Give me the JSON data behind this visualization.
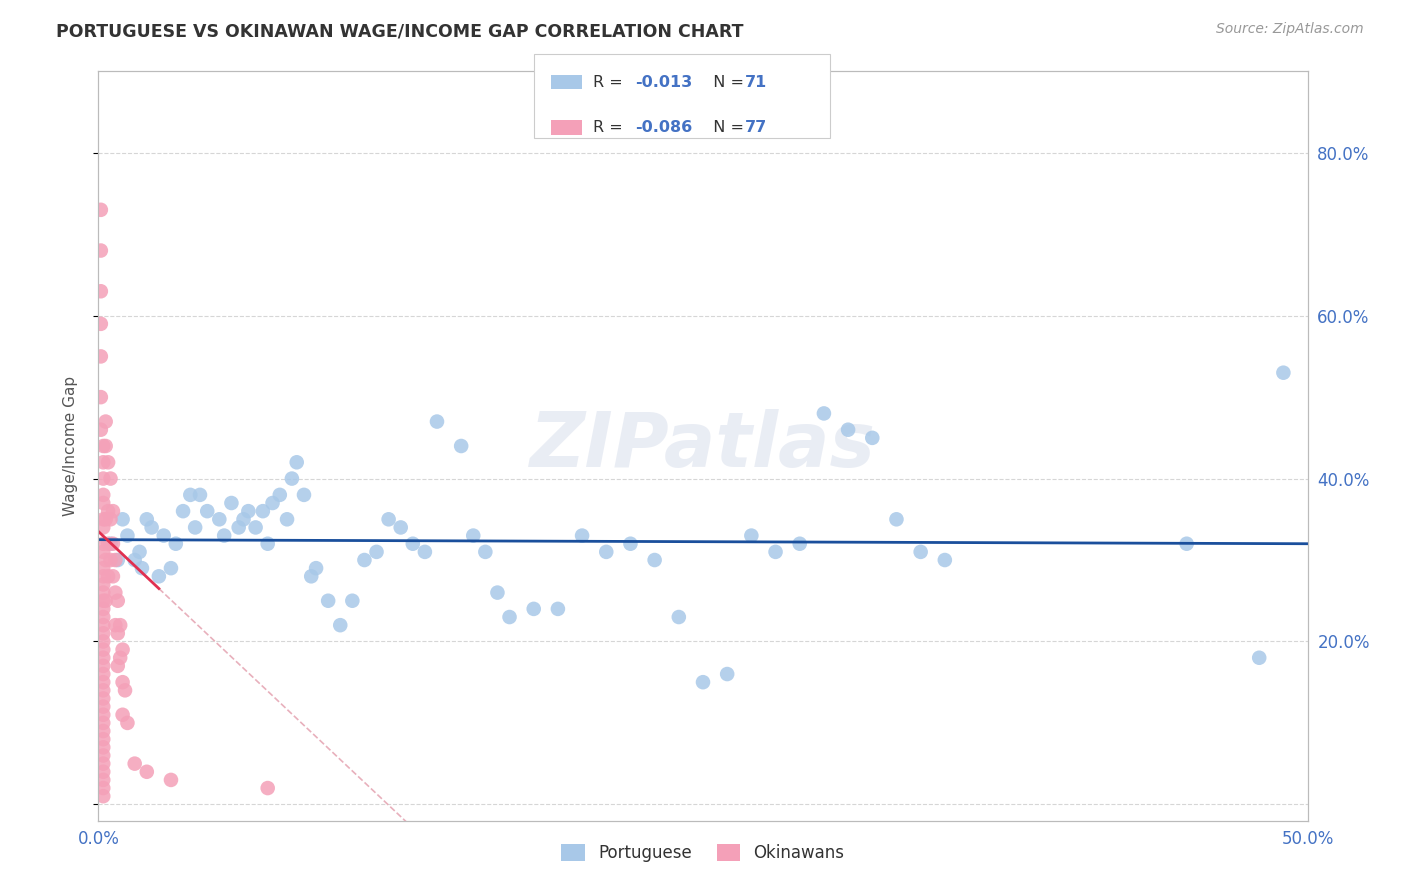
{
  "title": "PORTUGUESE VS OKINAWAN WAGE/INCOME GAP CORRELATION CHART",
  "source": "Source: ZipAtlas.com",
  "ylabel": "Wage/Income Gap",
  "legend_portuguese": "Portuguese",
  "legend_okinawans": "Okinawans",
  "portuguese_R": -0.013,
  "portuguese_N": 71,
  "okinawan_R": -0.086,
  "okinawan_N": 77,
  "portuguese_color": "#a8c8e8",
  "okinawan_color": "#f4a0b8",
  "portuguese_line_color": "#1a4f9c",
  "okinawan_line_color": "#e03050",
  "okinawan_line_dashed_color": "#e8b0bc",
  "background_color": "#ffffff",
  "grid_color": "#cccccc",
  "title_color": "#333333",
  "axis_label_color": "#4472c4",
  "watermark": "ZIPatlas",
  "portuguese_scatter_x": [
    0.005,
    0.008,
    0.01,
    0.012,
    0.015,
    0.017,
    0.018,
    0.02,
    0.022,
    0.025,
    0.027,
    0.03,
    0.032,
    0.035,
    0.038,
    0.04,
    0.042,
    0.045,
    0.05,
    0.052,
    0.055,
    0.058,
    0.06,
    0.062,
    0.065,
    0.068,
    0.07,
    0.072,
    0.075,
    0.078,
    0.08,
    0.082,
    0.085,
    0.088,
    0.09,
    0.095,
    0.1,
    0.105,
    0.11,
    0.115,
    0.12,
    0.125,
    0.13,
    0.135,
    0.14,
    0.15,
    0.155,
    0.16,
    0.165,
    0.17,
    0.18,
    0.19,
    0.2,
    0.21,
    0.22,
    0.23,
    0.24,
    0.25,
    0.26,
    0.27,
    0.28,
    0.29,
    0.3,
    0.31,
    0.32,
    0.33,
    0.34,
    0.35,
    0.45,
    0.48,
    0.49
  ],
  "portuguese_scatter_y": [
    0.32,
    0.3,
    0.35,
    0.33,
    0.3,
    0.31,
    0.29,
    0.35,
    0.34,
    0.28,
    0.33,
    0.29,
    0.32,
    0.36,
    0.38,
    0.34,
    0.38,
    0.36,
    0.35,
    0.33,
    0.37,
    0.34,
    0.35,
    0.36,
    0.34,
    0.36,
    0.32,
    0.37,
    0.38,
    0.35,
    0.4,
    0.42,
    0.38,
    0.28,
    0.29,
    0.25,
    0.22,
    0.25,
    0.3,
    0.31,
    0.35,
    0.34,
    0.32,
    0.31,
    0.47,
    0.44,
    0.33,
    0.31,
    0.26,
    0.23,
    0.24,
    0.24,
    0.33,
    0.31,
    0.32,
    0.3,
    0.23,
    0.15,
    0.16,
    0.33,
    0.31,
    0.32,
    0.48,
    0.46,
    0.45,
    0.35,
    0.31,
    0.3,
    0.32,
    0.18,
    0.53
  ],
  "okinawan_scatter_x": [
    0.001,
    0.001,
    0.001,
    0.001,
    0.001,
    0.001,
    0.001,
    0.002,
    0.002,
    0.002,
    0.002,
    0.002,
    0.002,
    0.002,
    0.002,
    0.002,
    0.002,
    0.002,
    0.002,
    0.002,
    0.002,
    0.002,
    0.002,
    0.002,
    0.002,
    0.002,
    0.002,
    0.002,
    0.002,
    0.002,
    0.002,
    0.002,
    0.002,
    0.002,
    0.002,
    0.002,
    0.002,
    0.002,
    0.002,
    0.002,
    0.002,
    0.002,
    0.002,
    0.002,
    0.002,
    0.003,
    0.003,
    0.003,
    0.003,
    0.003,
    0.004,
    0.004,
    0.004,
    0.004,
    0.005,
    0.005,
    0.005,
    0.006,
    0.006,
    0.006,
    0.007,
    0.007,
    0.007,
    0.008,
    0.008,
    0.008,
    0.009,
    0.009,
    0.01,
    0.01,
    0.01,
    0.011,
    0.012,
    0.015,
    0.02,
    0.03,
    0.07
  ],
  "okinawan_scatter_y": [
    0.73,
    0.68,
    0.63,
    0.59,
    0.55,
    0.5,
    0.46,
    0.44,
    0.42,
    0.4,
    0.38,
    0.37,
    0.35,
    0.34,
    0.32,
    0.31,
    0.29,
    0.28,
    0.27,
    0.26,
    0.25,
    0.24,
    0.23,
    0.22,
    0.21,
    0.2,
    0.19,
    0.18,
    0.17,
    0.16,
    0.15,
    0.14,
    0.13,
    0.12,
    0.11,
    0.1,
    0.09,
    0.08,
    0.07,
    0.06,
    0.05,
    0.04,
    0.03,
    0.02,
    0.01,
    0.47,
    0.44,
    0.35,
    0.3,
    0.25,
    0.42,
    0.36,
    0.32,
    0.28,
    0.4,
    0.35,
    0.3,
    0.36,
    0.32,
    0.28,
    0.3,
    0.26,
    0.22,
    0.25,
    0.21,
    0.17,
    0.22,
    0.18,
    0.19,
    0.15,
    0.11,
    0.14,
    0.1,
    0.05,
    0.04,
    0.03,
    0.02
  ],
  "portuguese_line_y_at_0": 0.325,
  "portuguese_line_y_at_50": 0.32,
  "okinawan_line_x_start": 0.0,
  "okinawan_line_x_solid_end": 0.025,
  "okinawan_line_x_dashed_end": 0.5,
  "okinawan_line_y_start": 0.335,
  "okinawan_line_slope": -2.8,
  "xlim": [
    0.0,
    0.5
  ],
  "ylim": [
    -0.02,
    0.9
  ],
  "yticks": [
    0.0,
    0.2,
    0.4,
    0.6,
    0.8
  ],
  "ytick_right_labels": [
    "",
    "20.0%",
    "40.0%",
    "60.0%",
    "80.0%"
  ],
  "xtick_positions": [
    0.0,
    0.1,
    0.2,
    0.3,
    0.4,
    0.5
  ],
  "xtick_labels": [
    "0.0%",
    "",
    "",
    "",
    "",
    "50.0%"
  ]
}
